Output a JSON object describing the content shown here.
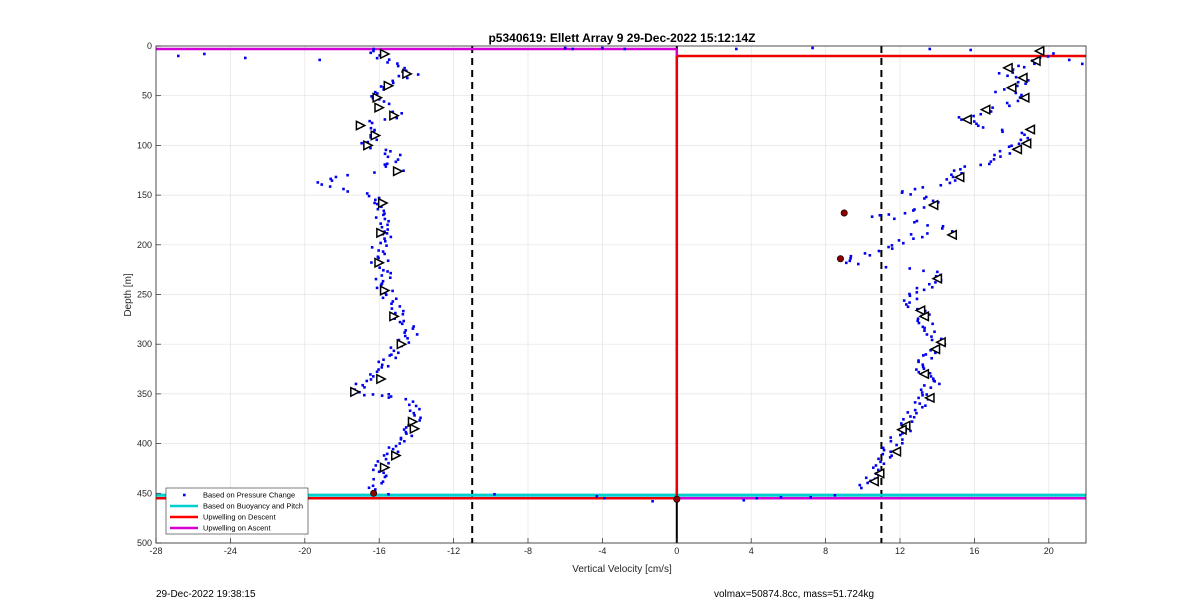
{
  "chart_data": {
    "type": "scatter",
    "title": "p5340619: Ellett Array 9 29-Dec-2022 15:12:14Z",
    "xlabel": "Vertical Velocity [cm/s]",
    "ylabel": "Depth [m]",
    "xlim": [
      -28,
      22
    ],
    "ylim": [
      0,
      500
    ],
    "y_reversed": true,
    "grid": true,
    "xticks": [
      -28,
      -24,
      -20,
      -16,
      -12,
      -8,
      -4,
      0,
      4,
      8,
      12,
      16,
      20
    ],
    "yticks": [
      0,
      50,
      100,
      150,
      200,
      250,
      300,
      350,
      400,
      450,
      500
    ],
    "legend_position": "bottom-left",
    "legend": [
      {
        "label": "Based on Pressure Change",
        "color": "#0000ff",
        "style": "marker"
      },
      {
        "label": "Based on Buoyancy and Pitch",
        "color": "#00d0d0",
        "style": "line"
      },
      {
        "label": "Upwelling on Descent",
        "color": "#ff0000",
        "style": "line"
      },
      {
        "label": "Upwelling on Ascent",
        "color": "#d400d4",
        "style": "line"
      }
    ],
    "reference_lines": [
      {
        "axis": "x",
        "value": -11,
        "style": "dashed",
        "color": "#000000"
      },
      {
        "axis": "x",
        "value": 11,
        "style": "dashed",
        "color": "#000000"
      },
      {
        "axis": "x",
        "value": 0,
        "style": "solid",
        "color": "#000000"
      }
    ],
    "upwelling_ascent_segments": [
      {
        "x": [
          -28,
          0
        ],
        "y": [
          3,
          3
        ]
      },
      {
        "x": [
          0,
          0
        ],
        "y": [
          3,
          455
        ]
      },
      {
        "x": [
          0,
          22
        ],
        "y": [
          455,
          455
        ]
      }
    ],
    "upwelling_descent_segments": [
      {
        "x": [
          0,
          22
        ],
        "y": [
          10,
          10
        ]
      },
      {
        "x": [
          0,
          0
        ],
        "y": [
          10,
          455
        ]
      },
      {
        "x": [
          -28,
          0
        ],
        "y": [
          455,
          455
        ]
      }
    ],
    "buoyancy_pitch_line_depth": 452,
    "descent_profile": [
      [
        -16.3,
        5
      ],
      [
        -14.6,
        25
      ],
      [
        -14.3,
        28
      ],
      [
        -15.2,
        35
      ],
      [
        -15.6,
        40
      ],
      [
        -15.9,
        46
      ],
      [
        -16.1,
        52
      ],
      [
        -15.7,
        58
      ],
      [
        -15.9,
        62
      ],
      [
        -15.2,
        68
      ],
      [
        -15.0,
        72
      ],
      [
        -16.3,
        76
      ],
      [
        -16.9,
        80
      ],
      [
        -16.5,
        86
      ],
      [
        -16.2,
        92
      ],
      [
        -16.6,
        100
      ],
      [
        -15.6,
        104
      ],
      [
        -15.1,
        112
      ],
      [
        -15.4,
        120
      ],
      [
        -15.0,
        126
      ],
      [
        -17.5,
        130
      ],
      [
        -18.8,
        136
      ],
      [
        -19.2,
        140
      ],
      [
        -16.6,
        148
      ],
      [
        -16.0,
        155
      ],
      [
        -15.6,
        162
      ],
      [
        -15.8,
        170
      ],
      [
        -15.9,
        180
      ],
      [
        -15.7,
        188
      ],
      [
        -15.9,
        196
      ],
      [
        -16.0,
        205
      ],
      [
        -15.8,
        212
      ],
      [
        -16.0,
        218
      ],
      [
        -15.6,
        225
      ],
      [
        -15.8,
        235
      ],
      [
        -15.7,
        245
      ],
      [
        -15.4,
        255
      ],
      [
        -15.1,
        262
      ],
      [
        -15.0,
        270
      ],
      [
        -14.6,
        280
      ],
      [
        -14.3,
        288
      ],
      [
        -14.6,
        296
      ],
      [
        -14.9,
        302
      ],
      [
        -15.3,
        310
      ],
      [
        -15.7,
        320
      ],
      [
        -16.1,
        328
      ],
      [
        -16.8,
        340
      ],
      [
        -17.0,
        348
      ],
      [
        -16.5,
        352
      ],
      [
        -15.8,
        350
      ],
      [
        -14.3,
        358
      ],
      [
        -14.0,
        365
      ],
      [
        -13.7,
        372
      ],
      [
        -14.0,
        380
      ],
      [
        -14.5,
        390
      ],
      [
        -15.0,
        400
      ],
      [
        -15.3,
        410
      ],
      [
        -15.7,
        420
      ],
      [
        -16.0,
        430
      ],
      [
        -16.2,
        440
      ],
      [
        -16.3,
        448
      ]
    ],
    "ascent_profile": [
      [
        19.5,
        5
      ],
      [
        20.3,
        10
      ],
      [
        19.2,
        15
      ],
      [
        18.5,
        22
      ],
      [
        17.7,
        28
      ],
      [
        18.6,
        32
      ],
      [
        18.3,
        40
      ],
      [
        17.4,
        46
      ],
      [
        18.6,
        52
      ],
      [
        18.0,
        58
      ],
      [
        17.0,
        64
      ],
      [
        16.3,
        68
      ],
      [
        15.3,
        72
      ],
      [
        16.0,
        80
      ],
      [
        17.5,
        84
      ],
      [
        18.5,
        90
      ],
      [
        18.6,
        98
      ],
      [
        18.0,
        104
      ],
      [
        17.2,
        110
      ],
      [
        16.5,
        118
      ],
      [
        15.2,
        126
      ],
      [
        14.8,
        132
      ],
      [
        15.0,
        138
      ],
      [
        13.5,
        142
      ],
      [
        12.0,
        148
      ],
      [
        13.5,
        152
      ],
      [
        14.0,
        160
      ],
      [
        12.4,
        166
      ],
      [
        11.3,
        170
      ],
      [
        10.2,
        172
      ],
      [
        12.5,
        176
      ],
      [
        13.5,
        180
      ],
      [
        14.6,
        186
      ],
      [
        13.0,
        190
      ],
      [
        12.3,
        196
      ],
      [
        11.8,
        202
      ],
      [
        10.4,
        208
      ],
      [
        9.0,
        214
      ],
      [
        9.8,
        220
      ],
      [
        13.5,
        226
      ],
      [
        14.0,
        234
      ],
      [
        13.3,
        242
      ],
      [
        12.8,
        250
      ],
      [
        12.6,
        258
      ],
      [
        13.0,
        266
      ],
      [
        13.2,
        272
      ],
      [
        13.4,
        280
      ],
      [
        13.8,
        290
      ],
      [
        14.2,
        298
      ],
      [
        13.9,
        306
      ],
      [
        13.3,
        314
      ],
      [
        13.0,
        322
      ],
      [
        13.4,
        330
      ],
      [
        13.7,
        340
      ],
      [
        13.5,
        350
      ],
      [
        13.2,
        358
      ],
      [
        12.9,
        366
      ],
      [
        12.6,
        374
      ],
      [
        12.4,
        382
      ],
      [
        12.0,
        392
      ],
      [
        11.6,
        402
      ],
      [
        11.2,
        412
      ],
      [
        10.8,
        422
      ],
      [
        10.5,
        432
      ],
      [
        10.1,
        440
      ],
      [
        9.7,
        446
      ]
    ],
    "triangle_markers_left": [
      [
        -15.7,
        8
      ],
      [
        -14.5,
        28
      ],
      [
        -15.5,
        40
      ],
      [
        -16.1,
        52
      ],
      [
        -16.0,
        62
      ],
      [
        -15.2,
        70
      ],
      [
        -17.0,
        80
      ],
      [
        -16.2,
        90
      ],
      [
        -16.6,
        100
      ],
      [
        -15.0,
        126
      ],
      [
        -15.8,
        158
      ],
      [
        -15.9,
        188
      ],
      [
        -16.0,
        218
      ],
      [
        -15.7,
        246
      ],
      [
        -15.2,
        272
      ],
      [
        -14.8,
        300
      ],
      [
        -15.9,
        335
      ],
      [
        -17.3,
        348
      ],
      [
        -14.2,
        378
      ],
      [
        -14.1,
        385
      ],
      [
        -15.1,
        412
      ],
      [
        -15.7,
        424
      ]
    ],
    "triangle_markers_right": [
      [
        19.5,
        5
      ],
      [
        19.3,
        15
      ],
      [
        17.8,
        22
      ],
      [
        18.6,
        32
      ],
      [
        18.0,
        42
      ],
      [
        18.7,
        52
      ],
      [
        16.6,
        64
      ],
      [
        15.6,
        74
      ],
      [
        19.0,
        84
      ],
      [
        18.8,
        98
      ],
      [
        18.3,
        104
      ],
      [
        15.2,
        132
      ],
      [
        13.8,
        160
      ],
      [
        14.8,
        190
      ],
      [
        14.0,
        234
      ],
      [
        13.1,
        266
      ],
      [
        13.3,
        272
      ],
      [
        14.2,
        298
      ],
      [
        13.9,
        305
      ],
      [
        13.3,
        330
      ],
      [
        13.6,
        354
      ],
      [
        12.3,
        382
      ],
      [
        12.1,
        386
      ],
      [
        11.8,
        408
      ],
      [
        10.9,
        430
      ],
      [
        10.6,
        438
      ]
    ],
    "scattered_near_surface": [
      [
        -26.8,
        10
      ],
      [
        -25.4,
        8
      ],
      [
        -23.2,
        12
      ],
      [
        -19.2,
        14
      ],
      [
        -16.3,
        3
      ],
      [
        -6,
        2
      ],
      [
        -5.6,
        3
      ],
      [
        -4,
        2
      ],
      [
        -2.8,
        3
      ],
      [
        3.2,
        3
      ],
      [
        7.3,
        2
      ],
      [
        13.6,
        3
      ],
      [
        15.8,
        4
      ],
      [
        21.1,
        14
      ],
      [
        21.8,
        18
      ]
    ],
    "scattered_near_bottom": [
      [
        -16.3,
        452
      ],
      [
        -15.5,
        451
      ],
      [
        -9.8,
        451
      ],
      [
        -4.3,
        453
      ],
      [
        -3.9,
        455
      ],
      [
        -1.3,
        458
      ],
      [
        3.6,
        457
      ],
      [
        4.3,
        455
      ],
      [
        5.6,
        454
      ],
      [
        7.2,
        454
      ],
      [
        8.5,
        452
      ]
    ],
    "highlight_points": [
      [
        9.0,
        168
      ],
      [
        8.8,
        214
      ],
      [
        -16.3,
        450
      ],
      [
        0,
        456
      ]
    ]
  },
  "footer": {
    "timestamp": "29-Dec-2022 19:38:15",
    "info": "volmax=50874.8cc, mass=51.724kg"
  }
}
